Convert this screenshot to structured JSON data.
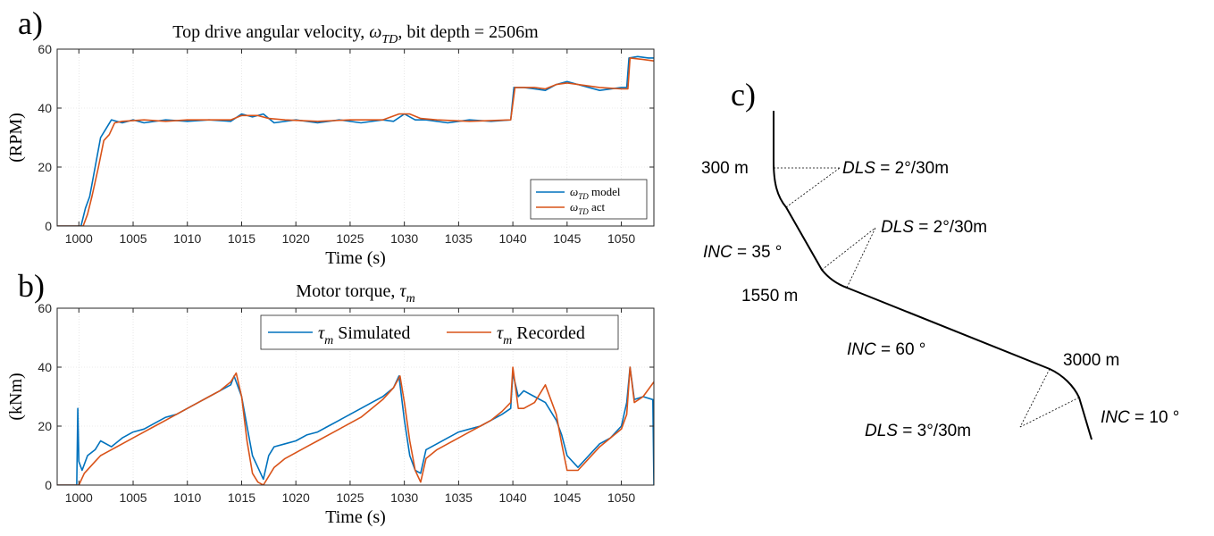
{
  "panels": {
    "a_label": "a)",
    "b_label": "b)",
    "c_label": "c)"
  },
  "colors": {
    "model": "#0072BD",
    "actual": "#D95319",
    "axis": "#262626",
    "grid": "#000000"
  },
  "chart_data": [
    {
      "type": "line",
      "title": "Top drive angular velocity, ω_TD, bit depth = 2506m",
      "title_parts": {
        "prefix": "Top drive angular velocity, ",
        "sym": "ω",
        "sub": "TD",
        "suffix": ", bit depth = 2506m"
      },
      "xlabel": "Time (s)",
      "ylabel": "(RPM)",
      "xlim": [
        998,
        1053
      ],
      "ylim": [
        0,
        60
      ],
      "xticks": [
        1000,
        1005,
        1010,
        1015,
        1020,
        1025,
        1030,
        1035,
        1040,
        1045,
        1050
      ],
      "yticks": [
        0,
        20,
        40,
        60
      ],
      "legend_position": "bottom-right",
      "series": [
        {
          "name": "ω_TD model",
          "legend_suffix": " model",
          "color": "#0072BD",
          "x": [
            998,
            1000.2,
            1000.6,
            1001,
            1001.5,
            1002,
            1002.5,
            1003,
            1004,
            1005,
            1006,
            1008,
            1010,
            1012,
            1014,
            1015,
            1016,
            1017,
            1018,
            1020,
            1022,
            1024,
            1026,
            1028,
            1029,
            1030,
            1031,
            1032,
            1034,
            1036,
            1038,
            1039.8,
            1040.1,
            1041,
            1042,
            1043,
            1044,
            1045,
            1046,
            1048,
            1050,
            1050.5,
            1050.7,
            1051.5,
            1052.5,
            1053
          ],
          "y": [
            0,
            0,
            6,
            10,
            20,
            30,
            33,
            36,
            35,
            36,
            35,
            36,
            35.5,
            36,
            35.5,
            38,
            37,
            38,
            35,
            36,
            35,
            36,
            35,
            36,
            35.5,
            38,
            36,
            36,
            35,
            36,
            35.5,
            36,
            47,
            47,
            46.5,
            46,
            48,
            49,
            48,
            46,
            47,
            47,
            57,
            57.5,
            57,
            57
          ]
        },
        {
          "name": "ω_TD act",
          "legend_suffix": " act",
          "color": "#D95319",
          "x": [
            998,
            1000.4,
            1000.8,
            1001.2,
            1001.8,
            1002.3,
            1002.8,
            1003.3,
            1004,
            1006,
            1008,
            1010,
            1012,
            1014,
            1015,
            1016.5,
            1017.5,
            1019,
            1022,
            1025,
            1028,
            1029.5,
            1030.5,
            1031.5,
            1033,
            1036,
            1039.8,
            1040.2,
            1042,
            1043,
            1044,
            1045,
            1046,
            1048,
            1050,
            1050.6,
            1050.8,
            1052,
            1053
          ],
          "y": [
            0,
            0,
            4,
            10,
            20,
            29,
            31,
            35,
            35.5,
            36,
            35.5,
            36,
            36,
            36,
            37.5,
            37.5,
            36.5,
            36,
            35.5,
            36,
            36,
            38,
            38,
            36.5,
            36,
            35.5,
            36,
            47,
            47,
            46.5,
            48,
            48.5,
            48,
            47,
            46.5,
            46.5,
            57,
            56.5,
            56
          ]
        }
      ]
    },
    {
      "type": "line",
      "title": "Motor torque, τ_m",
      "title_parts": {
        "prefix": "Motor torque, ",
        "sym": "τ",
        "sub": "m",
        "suffix": ""
      },
      "xlabel": "Time (s)",
      "ylabel": "(kNm)",
      "xlim": [
        998,
        1053
      ],
      "ylim": [
        0,
        60
      ],
      "xticks": [
        1000,
        1005,
        1010,
        1015,
        1020,
        1025,
        1030,
        1035,
        1040,
        1045,
        1050
      ],
      "yticks": [
        0,
        20,
        40,
        60
      ],
      "legend_position": "top-right",
      "series": [
        {
          "name": "τ_m Simulated",
          "legend_suffix": " Simulated",
          "color": "#0072BD",
          "x": [
            998,
            999.8,
            999.9,
            1000,
            1000.3,
            1000.8,
            1001.5,
            1002,
            1003,
            1004,
            1005,
            1006,
            1007,
            1008,
            1009,
            1010,
            1011,
            1012,
            1013,
            1014,
            1014.3,
            1015,
            1015.5,
            1016,
            1016.5,
            1017,
            1017.5,
            1018,
            1019,
            1020,
            1021,
            1022,
            1023,
            1024,
            1025,
            1026,
            1027,
            1028,
            1029,
            1029.5,
            1030,
            1030.5,
            1031,
            1031.5,
            1032,
            1033,
            1034,
            1035,
            1036,
            1037,
            1038,
            1039,
            1039.8,
            1040,
            1040.5,
            1041,
            1042,
            1043,
            1044,
            1044.5,
            1045,
            1046,
            1047,
            1048,
            1049,
            1050,
            1050.5,
            1050.8,
            1051.2,
            1052,
            1052.9,
            1053
          ],
          "y": [
            0,
            0,
            26,
            8,
            5,
            10,
            12,
            15,
            13,
            16,
            18,
            19,
            21,
            23,
            24,
            26,
            28,
            30,
            32,
            34,
            37,
            30,
            20,
            10,
            6,
            2,
            10,
            13,
            14,
            15,
            17,
            18,
            20,
            22,
            24,
            26,
            28,
            30,
            33,
            37,
            22,
            10,
            5,
            4,
            12,
            14,
            16,
            18,
            19,
            20,
            22,
            24,
            26,
            38,
            30,
            32,
            30,
            28,
            22,
            17,
            10,
            6,
            10,
            14,
            16,
            20,
            28,
            40,
            29,
            30,
            29,
            0
          ]
        },
        {
          "name": "τ_m Recorded",
          "legend_suffix": " Recorded",
          "color": "#D95319",
          "x": [
            998,
            1000,
            1000.5,
            1001.5,
            1002,
            1003,
            1004,
            1005,
            1006,
            1007,
            1008,
            1009,
            1010,
            1011,
            1012,
            1013,
            1014,
            1014.5,
            1015,
            1015.5,
            1016,
            1016.5,
            1017,
            1018,
            1019,
            1020,
            1021,
            1022,
            1023,
            1024,
            1025,
            1026,
            1027,
            1028,
            1029,
            1029.6,
            1030,
            1030.5,
            1031,
            1031.5,
            1032,
            1033,
            1034,
            1035,
            1036,
            1037,
            1038,
            1039,
            1039.8,
            1040,
            1040.5,
            1041,
            1042,
            1043,
            1044,
            1044.5,
            1045,
            1046,
            1047,
            1048,
            1049,
            1050,
            1050.5,
            1050.8,
            1051.2,
            1052,
            1053
          ],
          "y": [
            0,
            0,
            4,
            8,
            10,
            12,
            14,
            16,
            18,
            20,
            22,
            24,
            26,
            28,
            30,
            32,
            35,
            38,
            30,
            15,
            4,
            1,
            0,
            6,
            9,
            11,
            13,
            15,
            17,
            19,
            21,
            23,
            26,
            29,
            33,
            37,
            28,
            15,
            5,
            1,
            9,
            12,
            14,
            16,
            18,
            20,
            22,
            25,
            28,
            40,
            26,
            26,
            28,
            34,
            24,
            14,
            5,
            5,
            9,
            13,
            16,
            19,
            24,
            40,
            28,
            30,
            35
          ]
        }
      ]
    }
  ],
  "well_diagram": {
    "labels": {
      "depth_300": "300 m",
      "depth_1550": "1550 m",
      "depth_3000": "3000 m",
      "dls1_name": "DLS",
      "dls1_value": " = 2°/30m",
      "dls2_name": "DLS",
      "dls2_value": " = 2°/30m",
      "dls3_name": "DLS",
      "dls3_value": " = 3°/30m",
      "inc1_name": "INC",
      "inc1_value": " = 35 °",
      "inc2_name": "INC",
      "inc2_value": " = 60 °",
      "inc3_name": "INC",
      "inc3_value": " = 10 °"
    }
  }
}
